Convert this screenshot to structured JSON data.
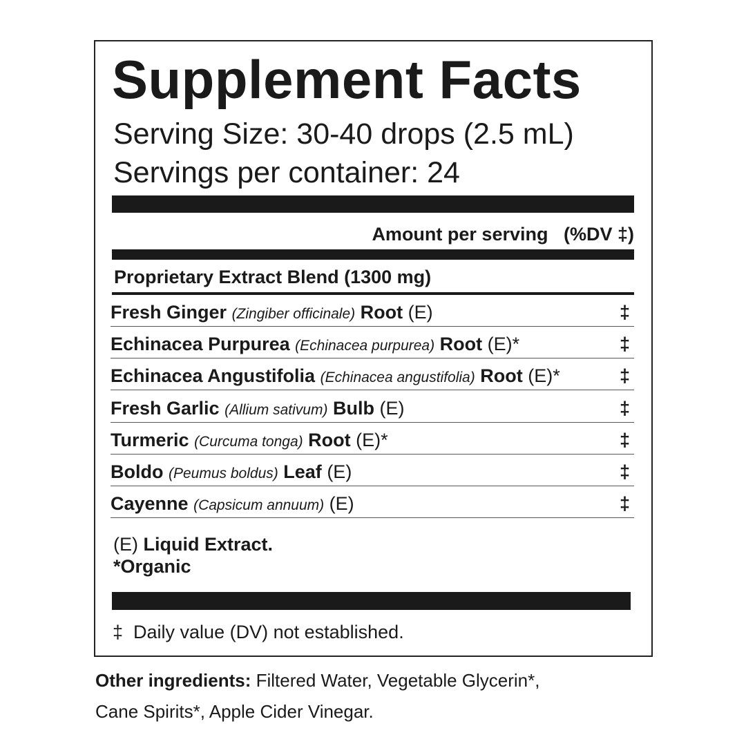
{
  "title": "Supplement Facts",
  "serving_size": "Serving Size: 30-40 drops (2.5 mL)",
  "servings_per_container": "Servings per container: 24",
  "amount_header": "Amount per serving   (%DV ‡)",
  "blend": "Proprietary Extract Blend (1300 mg)",
  "ingredients": [
    {
      "name": "Fresh Ginger",
      "latin": "(Zingiber officinale)",
      "part": "Root",
      "suffix": "(E)",
      "dv": "‡"
    },
    {
      "name": "Echinacea Purpurea",
      "latin": "(Echinacea purpurea)",
      "part": "Root",
      "suffix": "(E)*",
      "dv": "‡"
    },
    {
      "name": "Echinacea Angustifolia",
      "latin": "(Echinacea angustifolia)",
      "part": "Root",
      "suffix": "(E)*",
      "dv": "‡"
    },
    {
      "name": "Fresh Garlic",
      "latin": "(Allium sativum)",
      "part": "Bulb",
      "suffix": "(E)",
      "dv": "‡"
    },
    {
      "name": "Turmeric",
      "latin": "(Curcuma tonga)",
      "part": "Root",
      "suffix": "(E)*",
      "dv": "‡"
    },
    {
      "name": "Boldo",
      "latin": "(Peumus boldus)",
      "part": "Leaf",
      "suffix": "(E)",
      "dv": "‡"
    },
    {
      "name": "Cayenne",
      "latin": "(Capsicum annuum)",
      "part": "",
      "suffix": "(E)",
      "dv": "‡"
    }
  ],
  "footnotes": {
    "e_prefix": "(E)",
    "e_label": "Liquid Extract.",
    "organic": "*Organic"
  },
  "dv_note": "‡  Daily value (DV) not established.",
  "other": {
    "label": "Other ingredients:",
    "line1": " Filtered Water, Vegetable Glycerin*,",
    "line2": "Cane Spirits*, Apple Cider Vinegar."
  }
}
